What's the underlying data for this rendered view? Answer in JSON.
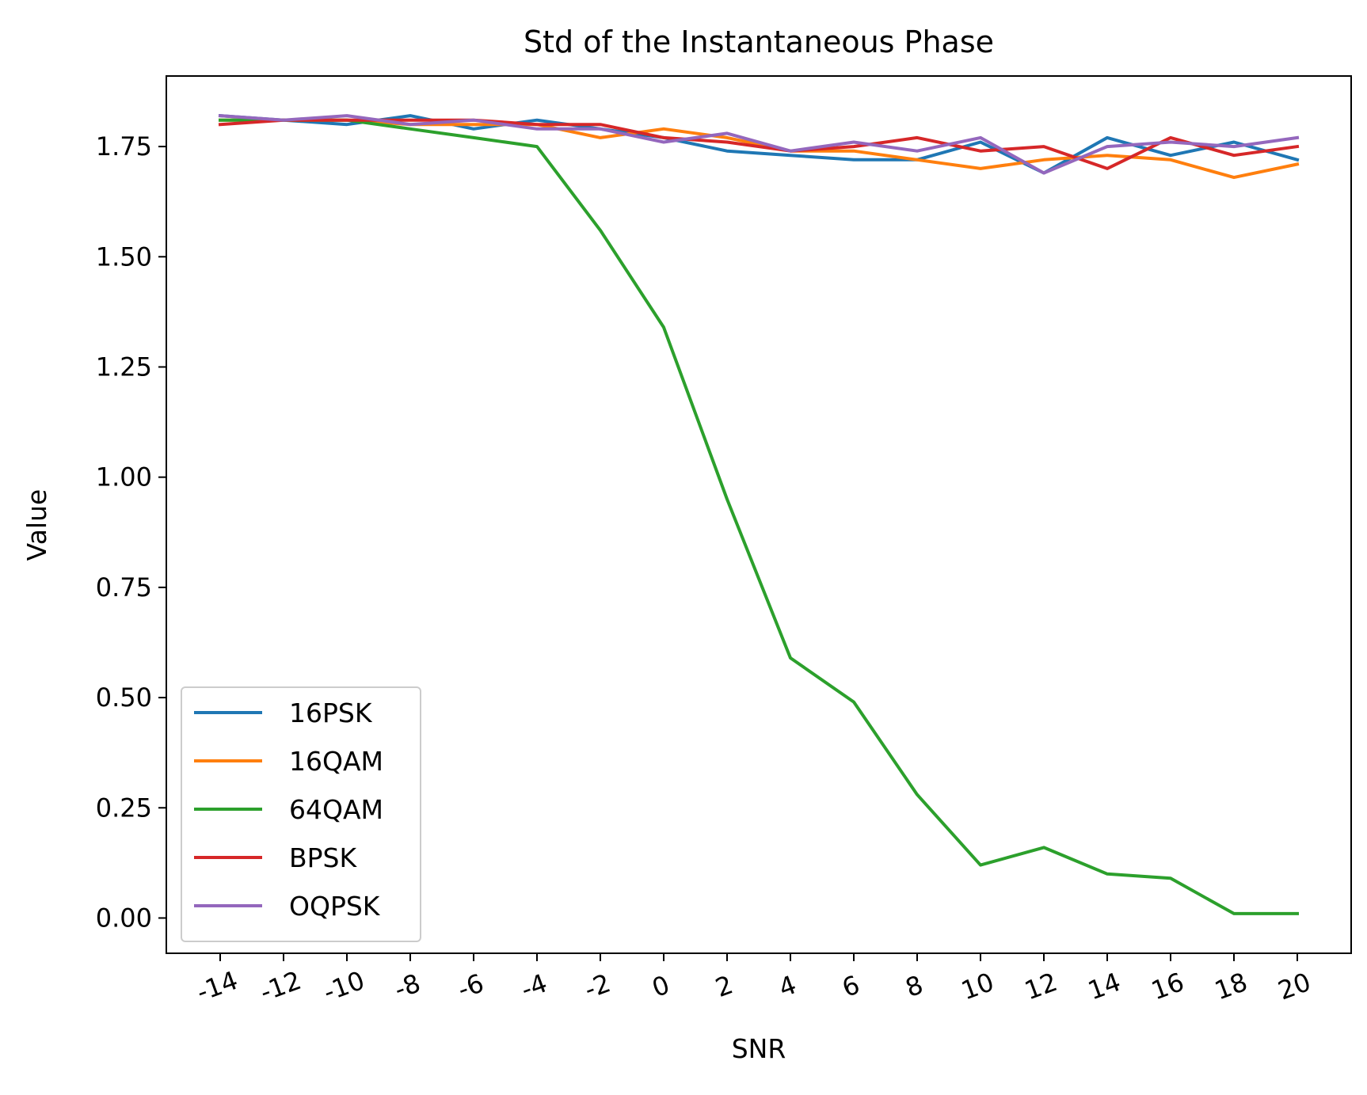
{
  "chart_data": {
    "type": "line",
    "title": "Std of the Instantaneous Phase",
    "xlabel": "SNR",
    "ylabel": "Value",
    "x": [
      -14,
      -12,
      -10,
      -8,
      -6,
      -4,
      -2,
      0,
      2,
      4,
      6,
      8,
      10,
      12,
      14,
      16,
      18,
      20
    ],
    "x_tick_labels": [
      "-14",
      "-12",
      "-10",
      "-8",
      "-6",
      "-4",
      "-2",
      "0",
      "2",
      "4",
      "6",
      "8",
      "10",
      "12",
      "14",
      "16",
      "18",
      "20"
    ],
    "x_tick_rotation_deg": 20,
    "y_ticks": [
      0.0,
      0.25,
      0.5,
      0.75,
      1.0,
      1.25,
      1.5,
      1.75
    ],
    "y_tick_labels": [
      "0.00",
      "0.25",
      "0.50",
      "0.75",
      "1.00",
      "1.25",
      "1.50",
      "1.75"
    ],
    "xlim": [
      -15.7,
      21.7
    ],
    "ylim": [
      -0.08,
      1.91
    ],
    "grid": false,
    "legend_position": "lower-left",
    "series": [
      {
        "name": "16PSK",
        "color": "#1f77b4",
        "values": [
          1.82,
          1.81,
          1.8,
          1.82,
          1.79,
          1.81,
          1.79,
          1.77,
          1.74,
          1.73,
          1.72,
          1.72,
          1.76,
          1.69,
          1.77,
          1.73,
          1.76,
          1.72
        ]
      },
      {
        "name": "16QAM",
        "color": "#ff7f0e",
        "values": [
          1.81,
          1.81,
          1.81,
          1.8,
          1.8,
          1.8,
          1.77,
          1.79,
          1.77,
          1.74,
          1.74,
          1.72,
          1.7,
          1.72,
          1.73,
          1.72,
          1.68,
          1.71
        ]
      },
      {
        "name": "64QAM",
        "color": "#2ca02c",
        "values": [
          1.81,
          1.81,
          1.81,
          1.79,
          1.77,
          1.75,
          1.56,
          1.34,
          0.95,
          0.59,
          0.49,
          0.28,
          0.12,
          0.16,
          0.1,
          0.09,
          0.01,
          0.01
        ]
      },
      {
        "name": "BPSK",
        "color": "#d62728",
        "values": [
          1.8,
          1.81,
          1.81,
          1.81,
          1.81,
          1.8,
          1.8,
          1.77,
          1.76,
          1.74,
          1.75,
          1.77,
          1.74,
          1.75,
          1.7,
          1.77,
          1.73,
          1.75
        ]
      },
      {
        "name": "OQPSK",
        "color": "#9467bd",
        "values": [
          1.82,
          1.81,
          1.82,
          1.8,
          1.81,
          1.79,
          1.79,
          1.76,
          1.78,
          1.74,
          1.76,
          1.74,
          1.77,
          1.69,
          1.75,
          1.76,
          1.75,
          1.77
        ]
      }
    ]
  }
}
